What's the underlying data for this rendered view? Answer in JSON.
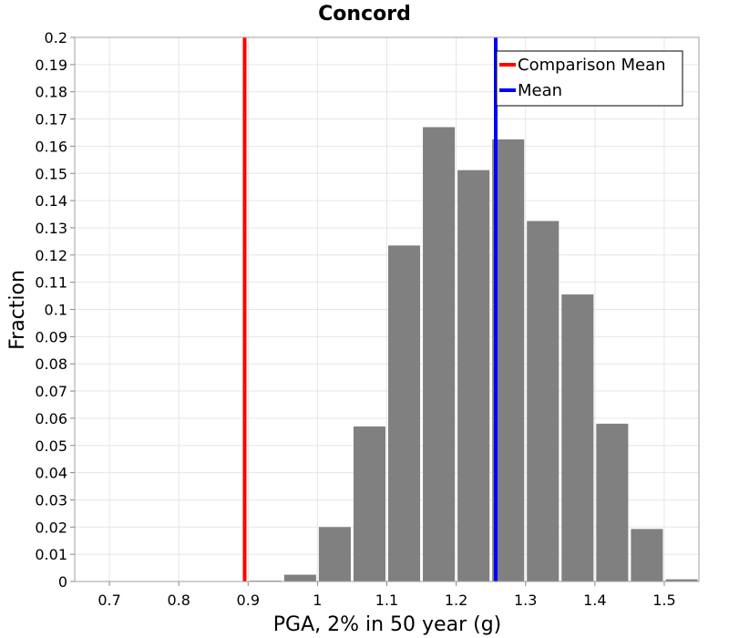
{
  "chart_data": {
    "type": "bar",
    "title": "Concord",
    "xlabel": "PGA, 2% in 50 year (g)",
    "ylabel": "Fraction",
    "xlim": [
      0.65,
      1.55
    ],
    "ylim": [
      0,
      0.2
    ],
    "bin_width": 0.05,
    "x_ticks": [
      "0.7",
      "0.8",
      "0.9",
      "1",
      "1.1",
      "1.2",
      "1.3",
      "1.4",
      "1.5"
    ],
    "y_ticks": [
      "0",
      "0.01",
      "0.02",
      "0.03",
      "0.04",
      "0.05",
      "0.06",
      "0.07",
      "0.08",
      "0.09",
      "0.1",
      "0.11",
      "0.12",
      "0.13",
      "0.14",
      "0.15",
      "0.16",
      "0.17",
      "0.18",
      "0.19",
      "0.2"
    ],
    "bins": [
      {
        "x": 0.675,
        "value": 0.0
      },
      {
        "x": 0.725,
        "value": 0.0
      },
      {
        "x": 0.775,
        "value": 0.0
      },
      {
        "x": 0.825,
        "value": 0.0
      },
      {
        "x": 0.875,
        "value": 0.0
      },
      {
        "x": 0.925,
        "value": 0.0003
      },
      {
        "x": 0.975,
        "value": 0.0025
      },
      {
        "x": 1.025,
        "value": 0.02
      },
      {
        "x": 1.075,
        "value": 0.057
      },
      {
        "x": 1.125,
        "value": 0.1235
      },
      {
        "x": 1.175,
        "value": 0.167
      },
      {
        "x": 1.225,
        "value": 0.1512
      },
      {
        "x": 1.275,
        "value": 0.1625
      },
      {
        "x": 1.325,
        "value": 0.1325
      },
      {
        "x": 1.375,
        "value": 0.1055
      },
      {
        "x": 1.425,
        "value": 0.058
      },
      {
        "x": 1.475,
        "value": 0.0193
      },
      {
        "x": 1.525,
        "value": 0.0008
      }
    ],
    "bar_color": "#808080",
    "vlines": [
      {
        "name": "Comparison Mean",
        "x": 0.895,
        "color": "#ff0000"
      },
      {
        "name": "Mean",
        "x": 1.257,
        "color": "#0000ff"
      }
    ],
    "legend": {
      "position": "top-right",
      "entries": [
        {
          "label": "Comparison Mean",
          "color": "#ff0000"
        },
        {
          "label": "Mean",
          "color": "#0000ff"
        }
      ]
    },
    "grid": true
  }
}
